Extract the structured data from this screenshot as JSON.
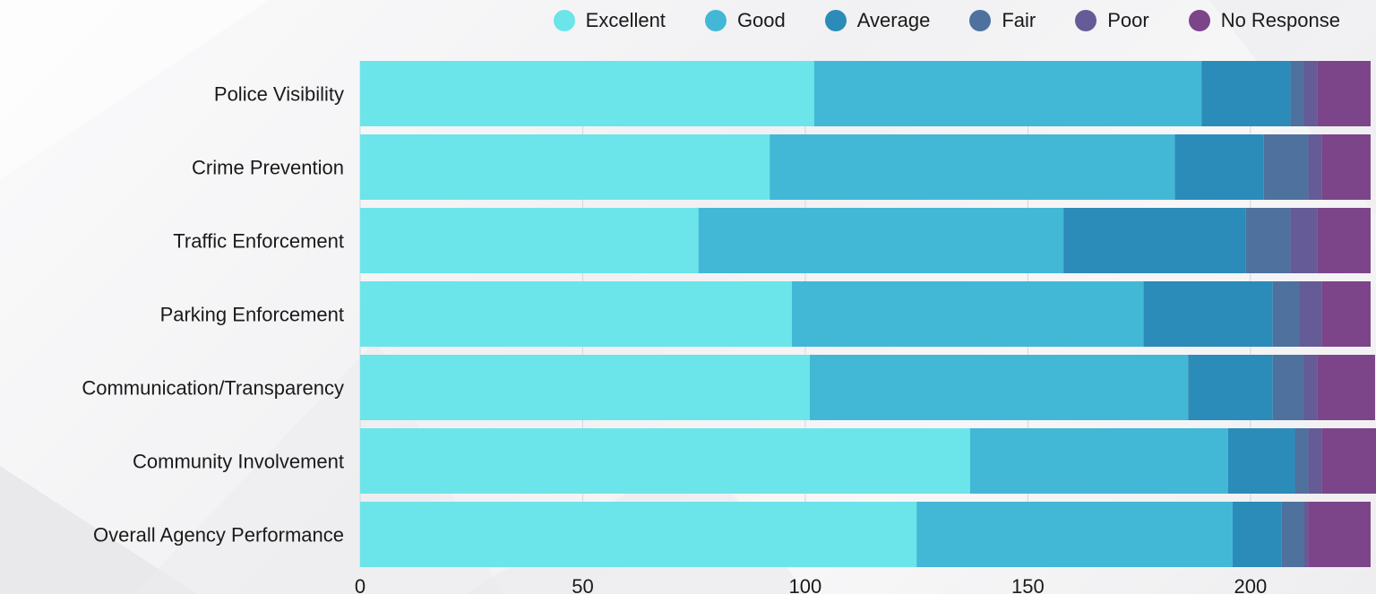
{
  "colors": {
    "Excellent": "#6be5e9",
    "Good": "#42b8d6",
    "Average": "#2b8bb9",
    "Fair": "#4e719e",
    "Poor": "#655b96",
    "No Response": "#7c4589"
  },
  "chart_data": {
    "type": "bar",
    "orientation": "horizontal",
    "stacked": true,
    "title": "",
    "xlabel": "",
    "ylabel": "",
    "xlim": [
      0,
      227
    ],
    "xticks": [
      0,
      50,
      100,
      150,
      200
    ],
    "grid": true,
    "legend_position": "top-right",
    "categories": [
      "Police Visibility",
      "Crime Prevention",
      "Traffic Enforcement",
      "Parking Enforcement",
      "Communication/Transparency",
      "Community Involvement",
      "Overall Agency Performance"
    ],
    "series": [
      {
        "name": "Excellent",
        "values": [
          102,
          92,
          76,
          97,
          101,
          137,
          125
        ]
      },
      {
        "name": "Good",
        "values": [
          87,
          91,
          82,
          79,
          85,
          58,
          71
        ]
      },
      {
        "name": "Average",
        "values": [
          20,
          20,
          41,
          29,
          19,
          15,
          11
        ]
      },
      {
        "name": "Fair",
        "values": [
          3,
          10,
          10,
          6,
          7,
          3,
          5
        ]
      },
      {
        "name": "Poor",
        "values": [
          3,
          3,
          6,
          5,
          3,
          3,
          1
        ]
      },
      {
        "name": "No Response",
        "values": [
          12,
          11,
          12,
          11,
          13,
          14,
          14
        ]
      }
    ]
  }
}
